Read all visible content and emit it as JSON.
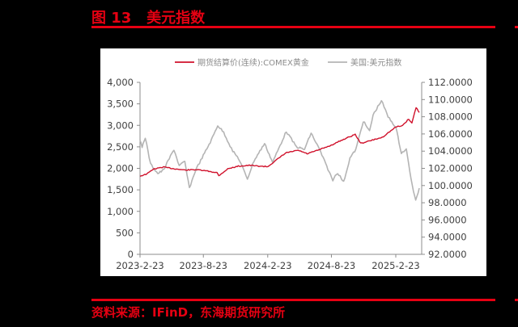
{
  "header": {
    "figure_label": "图 13",
    "figure_title": "美元指数"
  },
  "footer": {
    "source_text": "资料来源：IFinD，东海期货研究所"
  },
  "colors": {
    "accent": "#e60012",
    "gold_series": "#d0112b",
    "dxy_series": "#b4b4b4",
    "axis": "#8c8c8c",
    "text": "#404040"
  },
  "chart_data": {
    "type": "line",
    "title": "美元指数",
    "xlabel": "",
    "ylabel_left": "",
    "ylabel_right": "",
    "legend_position": "top",
    "grid": false,
    "x_ticks": [
      "2023-2-23",
      "2023-8-23",
      "2024-2-23",
      "2024-8-23",
      "2025-2-23"
    ],
    "y_left": {
      "range": [
        0,
        4000
      ],
      "ticks": [
        "0",
        "500",
        "1,000",
        "1,500",
        "2,000",
        "2,500",
        "3,000",
        "3,500",
        "4,000"
      ]
    },
    "y_right": {
      "range": [
        92,
        112
      ],
      "ticks": [
        "92.0000",
        "94.0000",
        "96.0000",
        "98.0000",
        "100.0000",
        "102.0000",
        "104.0000",
        "106.0000",
        "108.0000",
        "110.0000",
        "112.0000"
      ]
    },
    "series": [
      {
        "name": "期货结算价(连续):COMEX黄金",
        "axis": "left",
        "x": [
          "2023-02-23",
          "2023-03-15",
          "2023-04-01",
          "2023-05-01",
          "2023-06-01",
          "2023-07-01",
          "2023-08-01",
          "2023-09-01",
          "2023-10-01",
          "2023-10-06",
          "2023-11-01",
          "2023-12-01",
          "2024-01-01",
          "2024-02-01",
          "2024-02-23",
          "2024-03-15",
          "2024-04-15",
          "2024-05-20",
          "2024-06-15",
          "2024-07-15",
          "2024-08-23",
          "2024-09-20",
          "2024-10-30",
          "2024-11-15",
          "2024-12-15",
          "2025-01-15",
          "2025-02-23",
          "2025-03-15",
          "2025-04-01",
          "2025-04-10",
          "2025-04-22",
          "2025-05-01"
        ],
        "values": [
          1820,
          1870,
          1980,
          2030,
          1990,
          1960,
          1970,
          1940,
          1900,
          1830,
          1990,
          2050,
          2070,
          2050,
          2040,
          2170,
          2360,
          2420,
          2340,
          2420,
          2540,
          2650,
          2790,
          2580,
          2650,
          2720,
          2960,
          3000,
          3150,
          3050,
          3420,
          3300
        ]
      },
      {
        "name": "美国:美元指数",
        "axis": "right",
        "x": [
          "2023-02-23",
          "2023-03-01",
          "2023-03-10",
          "2023-03-25",
          "2023-04-15",
          "2023-05-01",
          "2023-05-31",
          "2023-06-15",
          "2023-07-01",
          "2023-07-14",
          "2023-08-01",
          "2023-08-23",
          "2023-09-15",
          "2023-10-03",
          "2023-10-20",
          "2023-11-15",
          "2023-12-01",
          "2023-12-27",
          "2024-01-15",
          "2024-02-14",
          "2024-03-08",
          "2024-04-16",
          "2024-05-15",
          "2024-06-07",
          "2024-06-26",
          "2024-07-20",
          "2024-08-27",
          "2024-09-10",
          "2024-09-27",
          "2024-10-15",
          "2024-11-01",
          "2024-11-22",
          "2024-12-10",
          "2024-12-20",
          "2025-01-13",
          "2025-02-01",
          "2025-02-23",
          "2025-03-11",
          "2025-03-25",
          "2025-04-11",
          "2025-04-21",
          "2025-05-01"
        ],
        "values": [
          105.2,
          104.5,
          105.6,
          102.5,
          101.4,
          101.8,
          104.2,
          102.3,
          102.8,
          99.7,
          101.8,
          103.5,
          105.3,
          107.0,
          106.2,
          104.0,
          103.2,
          100.8,
          102.9,
          104.9,
          102.7,
          106.3,
          104.5,
          104.2,
          106.1,
          104.2,
          100.6,
          101.5,
          100.4,
          103.2,
          104.2,
          107.5,
          106.3,
          108.2,
          109.9,
          108.0,
          106.8,
          103.8,
          104.2,
          100.0,
          98.2,
          99.7
        ]
      }
    ]
  }
}
